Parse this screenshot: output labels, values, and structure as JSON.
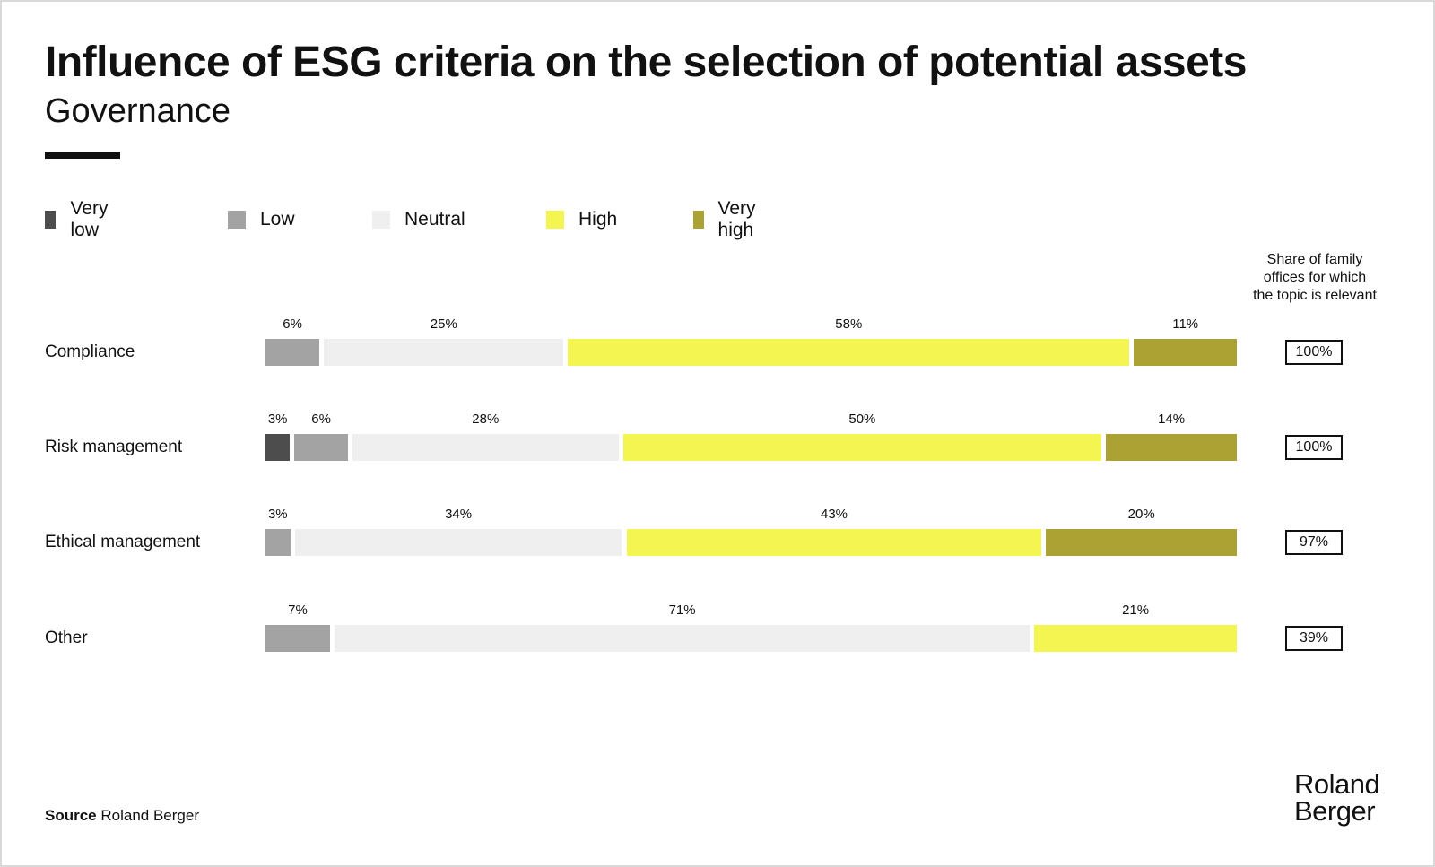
{
  "title": "Influence of ESG criteria on the selection of potential assets",
  "subtitle": "Governance",
  "share_header": [
    "Share of family",
    "offices for which",
    "the topic is relevant"
  ],
  "source_label": "Source",
  "source_text": "Roland Berger",
  "brand_lines": [
    "Roland",
    "Berger"
  ],
  "chart_data": {
    "type": "bar",
    "orientation": "horizontal-stacked",
    "categories": [
      "Compliance",
      "Risk management",
      "Ethical management",
      "Other"
    ],
    "series": [
      {
        "name": "Very low",
        "color": "#4d4d4d",
        "values": [
          0,
          3,
          0,
          0
        ],
        "labels": [
          null,
          "3%",
          null,
          null
        ]
      },
      {
        "name": "Low",
        "color": "#a3a3a3",
        "values": [
          6,
          6,
          3,
          7
        ],
        "labels": [
          "6%",
          "6%",
          "3%",
          "7%"
        ]
      },
      {
        "name": "Neutral",
        "color": "#efefef",
        "values": [
          25,
          28,
          34,
          71
        ],
        "labels": [
          "25%",
          "28%",
          "34%",
          "71%"
        ]
      },
      {
        "name": "High",
        "color": "#f4f550",
        "values": [
          58,
          50,
          43,
          21
        ],
        "labels": [
          "58%",
          "50%",
          "43%",
          "21%"
        ]
      },
      {
        "name": "Very high",
        "color": "#aca234",
        "values": [
          11,
          14,
          20,
          0
        ],
        "labels": [
          "11%",
          "14%",
          "20%",
          null
        ]
      }
    ],
    "relevance_share": [
      "100%",
      "100%",
      "97%",
      "39%"
    ],
    "legend_position": "top-left"
  }
}
